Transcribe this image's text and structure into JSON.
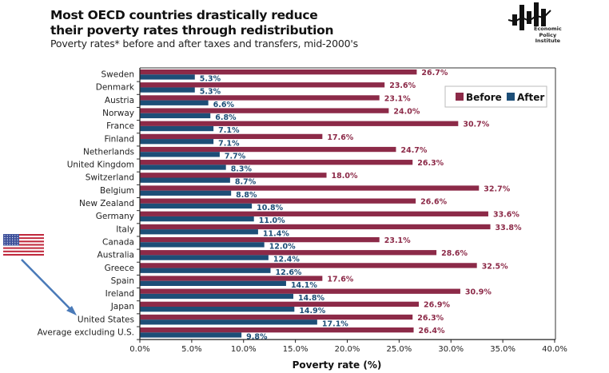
{
  "header": {
    "title_line1": "Most OECD countries drastically reduce",
    "title_line2": "their poverty rates through redistribution",
    "subtitle": "Poverty rates* before and after taxes and transfers, mid-2000's"
  },
  "logo": {
    "line1": "Economic",
    "line2": "Policy",
    "line3": "Institute"
  },
  "colors": {
    "before": "#8c2a48",
    "after": "#1d4e77",
    "arrow": "#4a7ab8"
  },
  "annotation": {
    "flag": "united-states-flag",
    "arrow_target": "United States"
  },
  "chart_data": {
    "type": "bar",
    "orientation": "horizontal",
    "title": "Most OECD countries drastically reduce their poverty rates through redistribution",
    "subtitle": "Poverty rates* before and after taxes and transfers, mid-2000's",
    "xlabel": "Poverty rate (%)",
    "ylabel": "",
    "xlim": [
      0,
      40
    ],
    "xticks": [
      "0.0%",
      "5.0%",
      "10.0%",
      "15.0%",
      "20.0%",
      "25.0%",
      "30.0%",
      "35.0%",
      "40.0%"
    ],
    "xtick_values": [
      0,
      5,
      10,
      15,
      20,
      25,
      30,
      35,
      40
    ],
    "legend": {
      "position": "top-right",
      "entries": [
        "Before",
        "After"
      ]
    },
    "grid": false,
    "categories": [
      "Sweden",
      "Denmark",
      "Austria",
      "Norway",
      "France",
      "Finland",
      "Netherlands",
      "United Kingdom",
      "Switzerland",
      "Belgium",
      "New Zealand",
      "Germany",
      "Italy",
      "Canada",
      "Australia",
      "Greece",
      "Spain",
      "Ireland",
      "Japan",
      "United States",
      "Average excluding U.S."
    ],
    "series": [
      {
        "name": "Before",
        "values": [
          26.7,
          23.6,
          23.1,
          24.0,
          30.7,
          17.6,
          24.7,
          26.3,
          18.0,
          32.7,
          26.6,
          33.6,
          33.8,
          23.1,
          28.6,
          32.5,
          17.6,
          30.9,
          26.9,
          26.3,
          26.4
        ]
      },
      {
        "name": "After",
        "values": [
          5.3,
          5.3,
          6.6,
          6.8,
          7.1,
          7.1,
          7.7,
          8.3,
          8.7,
          8.8,
          10.8,
          11.0,
          11.4,
          12.0,
          12.4,
          12.6,
          14.1,
          14.8,
          14.9,
          17.1,
          9.8
        ]
      }
    ],
    "value_label_format": "{v}%"
  }
}
